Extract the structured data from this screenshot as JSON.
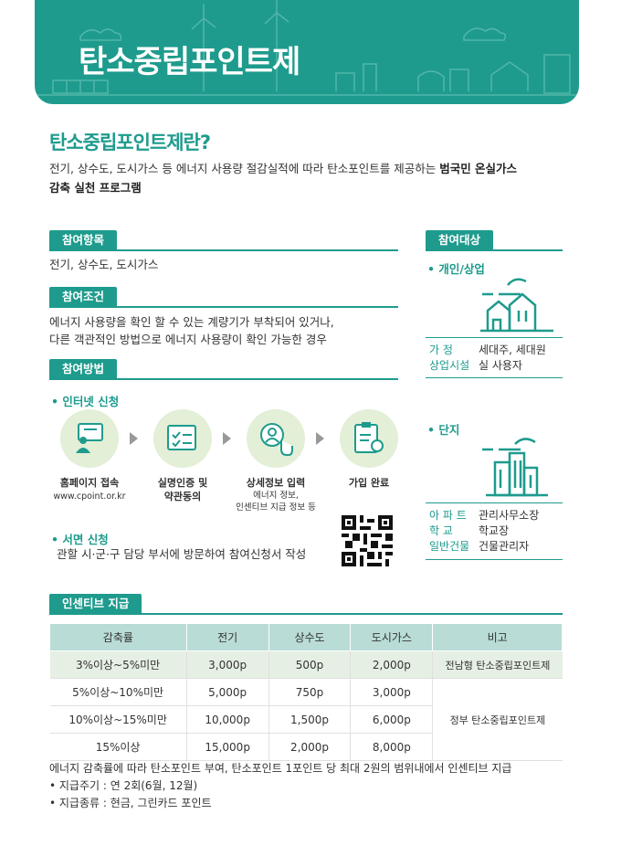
{
  "banner": {
    "title": "탄소중립포인트제"
  },
  "intro": {
    "heading": "탄소중립포인트제란?",
    "text_1": "전기, 상수도, 도시가스 등 에너지 사용량 절감실적에 따라 탄소포인트를 제공하는 ",
    "bold_1": "범국민 온실가스",
    "bold_2": "감축 실천 프로그램"
  },
  "items": {
    "tag": "참여항목",
    "text": "전기, 상수도, 도시가스"
  },
  "conditions": {
    "tag": "참여조건",
    "line_1": "에너지 사용량을 확인 할 수 있는 계량기가 부착되어 있거나,",
    "line_2": "다른 객관적인 방법으로 에너지 사용량이 확인 가능한 경우"
  },
  "method": {
    "tag": "참여방법",
    "internet_label": "• 인터넷 신청",
    "steps": [
      {
        "label": "홈페이지 접속",
        "sub": "www.cpoint.or.kr",
        "icon": "computer-user-icon"
      },
      {
        "label": "실명인증 및",
        "label2": "약관동의",
        "icon": "document-check-icon"
      },
      {
        "label": "상세정보 입력",
        "sub": "에너지 정보,",
        "sub2": "인센티브 지급 정보 등",
        "icon": "user-touch-icon"
      },
      {
        "label": "가입 완료",
        "icon": "clipboard-award-icon"
      }
    ],
    "paper_label": "• 서면 신청",
    "paper_text": "관할 시·군·구 담당 부서에 방문하여 참여신청서 작성"
  },
  "targets": {
    "tag": "참여대상",
    "individual": {
      "label": "• 개인/상업",
      "rows": [
        {
          "k": "가 정",
          "v": "세대주, 세대원"
        },
        {
          "k": "상업시설",
          "v": "실 사용자"
        }
      ]
    },
    "complex": {
      "label": "• 단지",
      "rows": [
        {
          "k": "아 파 트",
          "v": "관리사무소장"
        },
        {
          "k": "학 교",
          "v": "학교장"
        },
        {
          "k": "일반건물",
          "v": "건물관리자"
        }
      ]
    }
  },
  "incentive": {
    "tag": "인센티브 지급",
    "headers": [
      "감축률",
      "전기",
      "상수도",
      "도시가스",
      "비고"
    ],
    "rows": [
      [
        "3%이상~5%미만",
        "3,000p",
        "500p",
        "2,000p"
      ],
      [
        "5%이상~10%미만",
        "5,000p",
        "750p",
        "3,000p"
      ],
      [
        "10%이상~15%미만",
        "10,000p",
        "1,500p",
        "6,000p"
      ],
      [
        "15%이상",
        "15,000p",
        "2,000p",
        "8,000p"
      ]
    ],
    "note_1": "전남형 탄소중립포인트제",
    "note_2": "정부 탄소중립포인트제",
    "footnote": "에너지 감축률에 따라 탄소포인트 부여, 탄소포인트 1포인트 당 최대 2원의 범위내에서 인센티브 지급",
    "period": "• 지급주기 : 연 2회(6월, 12월)",
    "types": "• 지급종류 : 현금, 그린카드 포인트"
  },
  "colors": {
    "accent": "#1e9b8d",
    "header_fill": "#b9dcd6",
    "icon_bg": "#e3efd6"
  }
}
